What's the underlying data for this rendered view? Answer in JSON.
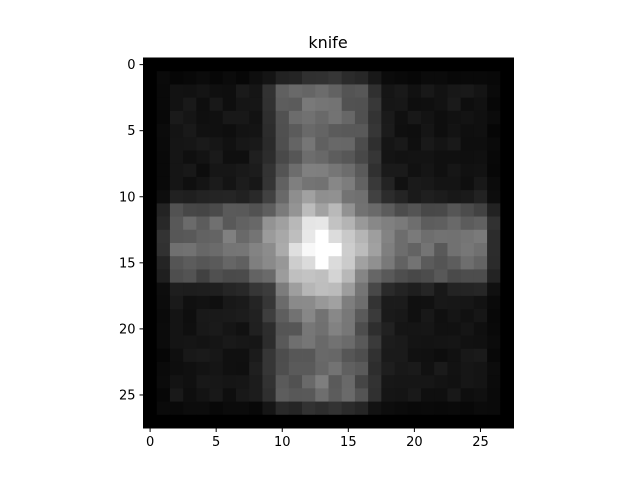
{
  "chart_data": {
    "type": "heatmap",
    "title": "knife",
    "colormap": "gray",
    "rows": 28,
    "cols": 28,
    "value_range": [
      0,
      255
    ],
    "x_ticks": [
      0,
      5,
      10,
      15,
      20,
      25
    ],
    "y_ticks": [
      0,
      5,
      10,
      15,
      20,
      25
    ],
    "xlim": [
      -0.5,
      27.5
    ],
    "ylim": [
      27.5,
      -0.5
    ],
    "xlabel": "",
    "ylabel": "",
    "description_values": {
      "border_value": 0,
      "background_value": 22,
      "bar_max_value": 95,
      "center_value": 255
    },
    "cross": {
      "vertical_band": {
        "center_col": 13,
        "half_width": 2.6,
        "row_range": [
          1,
          26
        ]
      },
      "horizontal_band": {
        "center_row": 13.5,
        "half_width": 2.0,
        "col_range": [
          1,
          26
        ]
      },
      "hotspot": {
        "center_row": 14,
        "center_col": 13,
        "radius": 2.6
      }
    }
  }
}
